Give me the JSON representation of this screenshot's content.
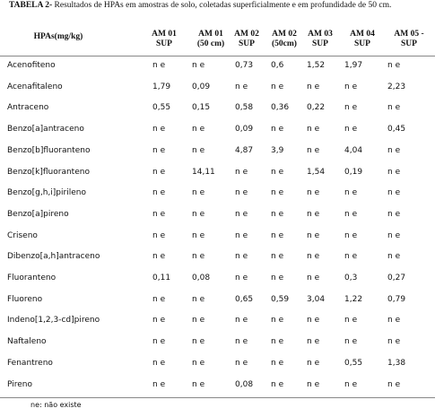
{
  "caption": {
    "label": "TABELA 2-",
    "text": "Resultados de HPAs em amostras de solo, coletadas superficialmente e em profundidade de 50 cm."
  },
  "table": {
    "row_header": "HPAs(mg/kg)",
    "headers": [
      [
        "AM 01",
        "SUP"
      ],
      [
        "AM 01",
        "(50 cm)"
      ],
      [
        "AM 02",
        "SUP"
      ],
      [
        "AM 02",
        "(50cm)"
      ],
      [
        "AM 03",
        "SUP"
      ],
      [
        "AM 04",
        "SUP"
      ],
      [
        "AM 05 -",
        "SUP"
      ]
    ],
    "rows": [
      [
        "Acenofiteno",
        "n e",
        "n e",
        "0,73",
        "0,6",
        "1,52",
        "1,97",
        "n e"
      ],
      [
        "Acenafitaleno",
        "1,79",
        "0,09",
        "n e",
        "n e",
        "n e",
        "n e",
        "2,23"
      ],
      [
        "Antraceno",
        "0,55",
        "0,15",
        "0,58",
        "0,36",
        "0,22",
        "n e",
        "n e"
      ],
      [
        "Benzo[a]antraceno",
        "n e",
        "n e",
        "0,09",
        "n e",
        "n e",
        "n e",
        "0,45"
      ],
      [
        "Benzo[b]fluoranteno",
        "n e",
        "n e",
        "4,87",
        "3,9",
        "n e",
        "4,04",
        "n e"
      ],
      [
        "Benzo[k]fluoranteno",
        "n e",
        "14,11",
        "n e",
        "n e",
        "1,54",
        "0,19",
        "n e"
      ],
      [
        "Benzo[g,h,i]pirileno",
        "n e",
        "n e",
        "n e",
        "n e",
        "n e",
        "n e",
        "n e"
      ],
      [
        "Benzo[a]pireno",
        "n e",
        "n e",
        "n e",
        "n e",
        "n e",
        "n e",
        "n e"
      ],
      [
        "Criseno",
        "n e",
        "n e",
        "n e",
        "n e",
        "n e",
        "n e",
        "n e"
      ],
      [
        "Dibenzo[a,h]antraceno",
        "n e",
        "n e",
        "n e",
        "n e",
        "n e",
        "n e",
        "n e"
      ],
      [
        "Fluoranteno",
        "0,11",
        "0,08",
        "n e",
        "n e",
        "n e",
        "0,3",
        "0,27"
      ],
      [
        "Fluoreno",
        "n e",
        "n e",
        "0,65",
        "0,59",
        "3,04",
        "1,22",
        "0,79"
      ],
      [
        "Indeno[1,2,3-cd]pireno",
        "n e",
        "n e",
        "n e",
        "n e",
        "n e",
        "n e",
        "n e"
      ],
      [
        "Naftaleno",
        "n e",
        "n e",
        "n e",
        "n e",
        "n e",
        "n e",
        "n e"
      ],
      [
        "Fenantreno",
        "n e",
        "n e",
        "n e",
        "n e",
        "n e",
        "0,55",
        "1,38"
      ],
      [
        "Pireno",
        "n e",
        "n e",
        "0,08",
        "n e",
        "n e",
        "n e",
        "n e"
      ]
    ]
  },
  "footnote": "ne: não existe"
}
